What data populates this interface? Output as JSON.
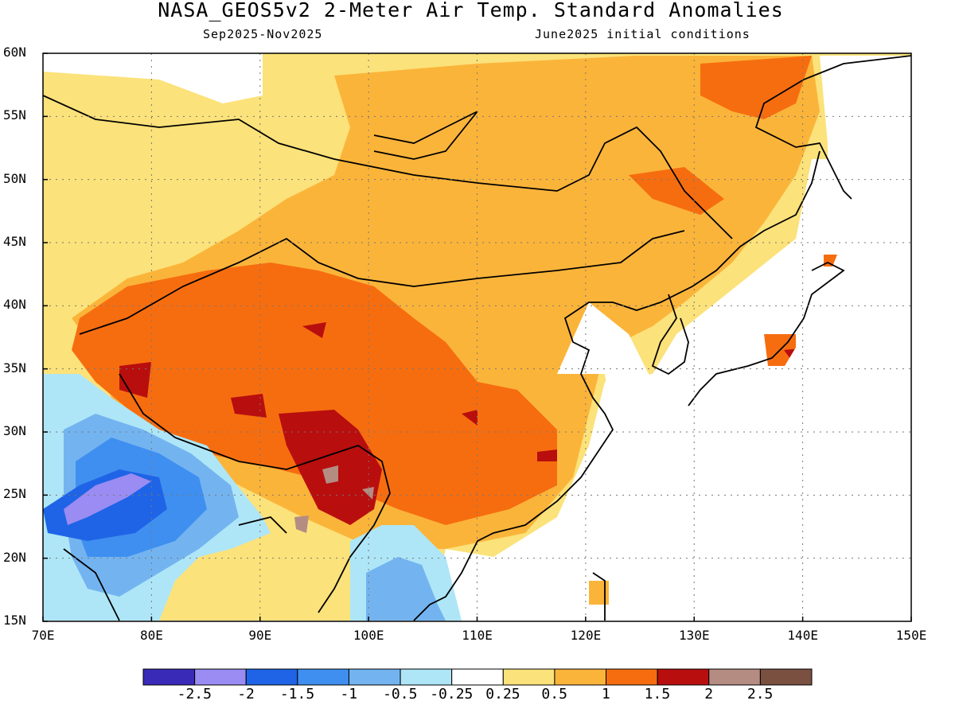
{
  "header": {
    "title": "NASA_GEOS5v2 2-Meter Air Temp. Standard Anomalies",
    "period": "Sep2025-Nov2025",
    "init": "June2025 initial conditions"
  },
  "map": {
    "lon_range": [
      70,
      150
    ],
    "lat_range": [
      15,
      60
    ],
    "lat_ticks": [
      "15N",
      "20N",
      "25N",
      "30N",
      "35N",
      "40N",
      "45N",
      "50N",
      "55N",
      "60N"
    ],
    "lon_ticks": [
      "70E",
      "80E",
      "90E",
      "100E",
      "110E",
      "120E",
      "130E",
      "140E",
      "150E"
    ],
    "gridlines": "dotted"
  },
  "colorbar": {
    "colors": [
      "#3a2ab8",
      "#9a8cf2",
      "#1f64e6",
      "#3f8ff0",
      "#73b4f0",
      "#aee6f8",
      "#ffffff",
      "#fbe27a",
      "#fbb43a",
      "#f66d10",
      "#b80e0e",
      "#b48c82",
      "#7a5040"
    ],
    "labels": [
      "-2.5",
      "-2",
      "-1.5",
      "-1",
      "-0.5",
      "-0.25",
      "0.25",
      "0.5",
      "1",
      "1.5",
      "2",
      "2.5"
    ]
  }
}
